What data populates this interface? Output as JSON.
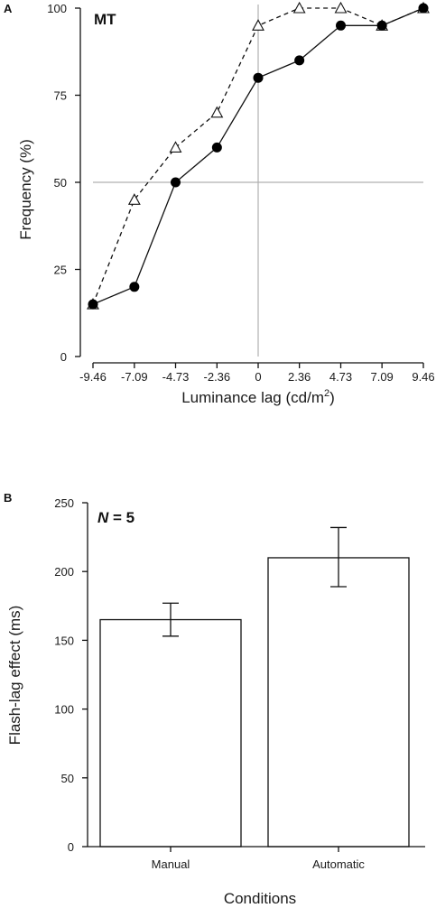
{
  "chart_data": [
    {
      "type": "line",
      "panel": "A",
      "annotation": "MT",
      "xlabel": "Luminance lag (cd/m",
      "xlabel_sup": "2",
      "xlabel_end": ")",
      "ylabel": "Frequency (%)",
      "x": [
        -9.46,
        -7.09,
        -4.73,
        -2.36,
        0,
        2.36,
        4.73,
        7.09,
        9.46
      ],
      "x_tick_labels": [
        "-9.46",
        "-7.09",
        "-4.73",
        "-2.36",
        "0",
        "2.36",
        "4.73",
        "7.09",
        "9.46"
      ],
      "y_ticks": [
        0,
        25,
        50,
        75,
        100
      ],
      "xlim": [
        -9.46,
        9.46
      ],
      "ylim": [
        0,
        100
      ],
      "reference_lines": {
        "x": 0,
        "y": 50
      },
      "series": [
        {
          "marker": "filled-circle",
          "line": "solid",
          "values": [
            15,
            20,
            50,
            60,
            80,
            85,
            95,
            95,
            100
          ]
        },
        {
          "marker": "open-triangle",
          "line": "dashed",
          "values": [
            15,
            45,
            60,
            70,
            95,
            100,
            100,
            95,
            100
          ]
        }
      ]
    },
    {
      "type": "bar",
      "panel": "B",
      "annotation_italic": "N",
      "annotation_rest": " = 5",
      "xlabel": "Conditions",
      "ylabel": "Flash-lag effect (ms)",
      "categories": [
        "Manual",
        "Automatic"
      ],
      "values": [
        165,
        210
      ],
      "error_low": [
        153,
        189
      ],
      "error_high": [
        177,
        232
      ],
      "y_ticks": [
        0,
        50,
        100,
        150,
        200,
        250
      ],
      "ylim": [
        0,
        250
      ]
    }
  ]
}
